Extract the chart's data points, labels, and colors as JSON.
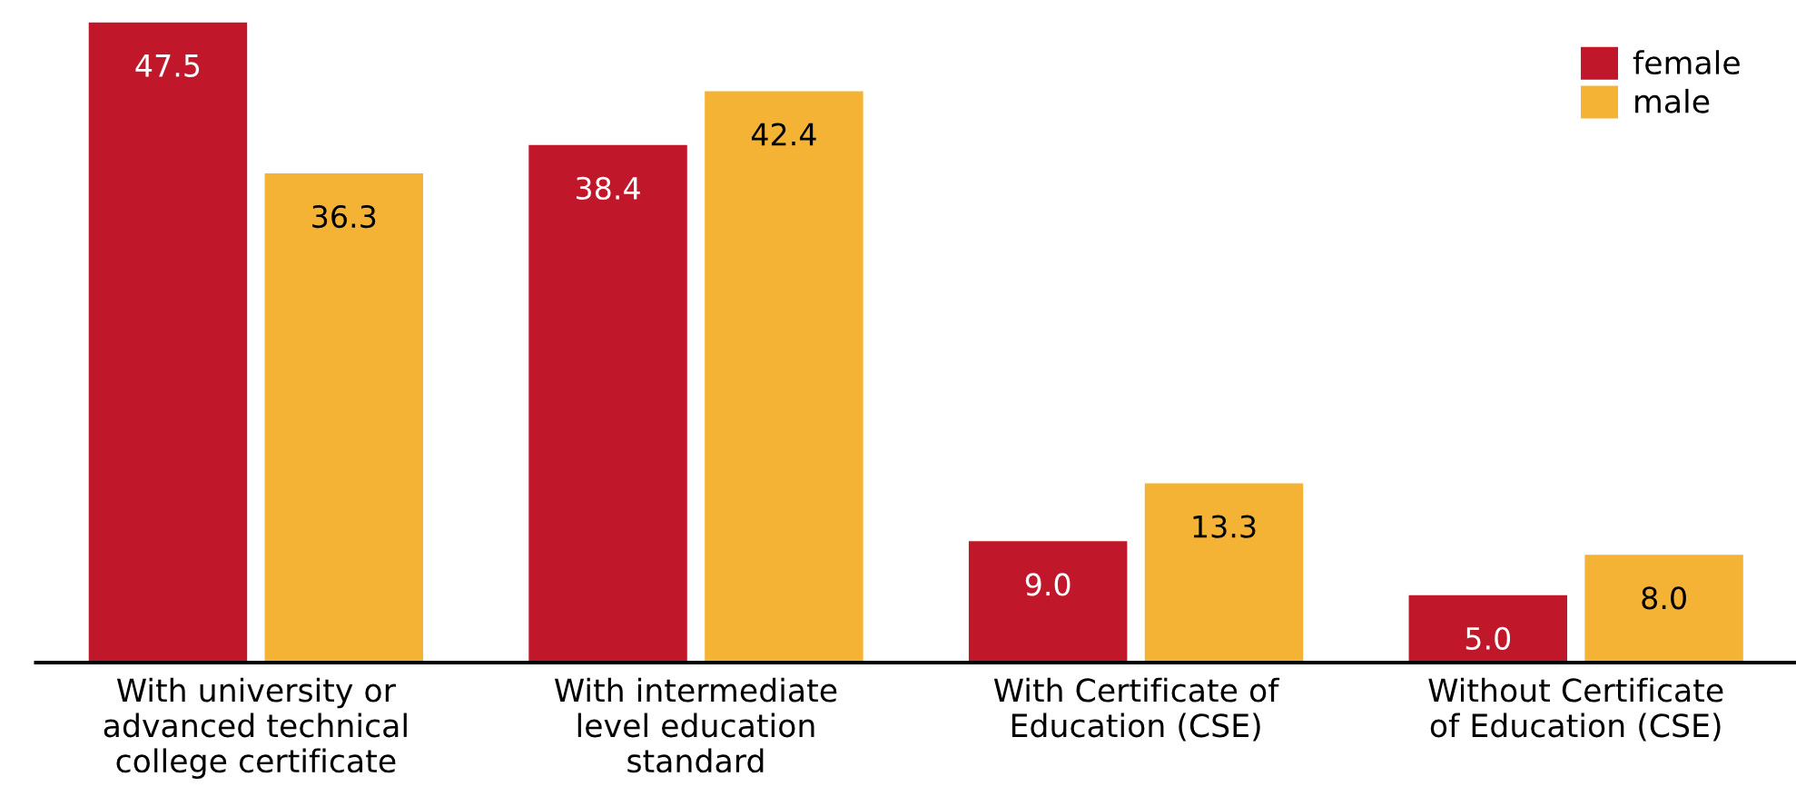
{
  "chart_data": {
    "type": "bar",
    "categories": [
      "With university or\nadvanced technical\ncollege certificate",
      "With intermediate\nlevel education\nstandard",
      "With Certificate of\nEducation (CSE)",
      "Without Certificate\nof Education (CSE)"
    ],
    "series": [
      {
        "name": "female",
        "color": "#c0182a",
        "values": [
          47.5,
          38.4,
          9.0,
          5.0
        ],
        "value_labels": [
          "47.5",
          "38.4",
          "9.0",
          "5.0"
        ]
      },
      {
        "name": "male",
        "color": "#f5b335",
        "values": [
          36.3,
          42.4,
          13.3,
          8.0
        ],
        "value_labels": [
          "36.3",
          "42.4",
          "13.3",
          "8.0"
        ]
      }
    ],
    "legend": "top right",
    "grid": false
  }
}
